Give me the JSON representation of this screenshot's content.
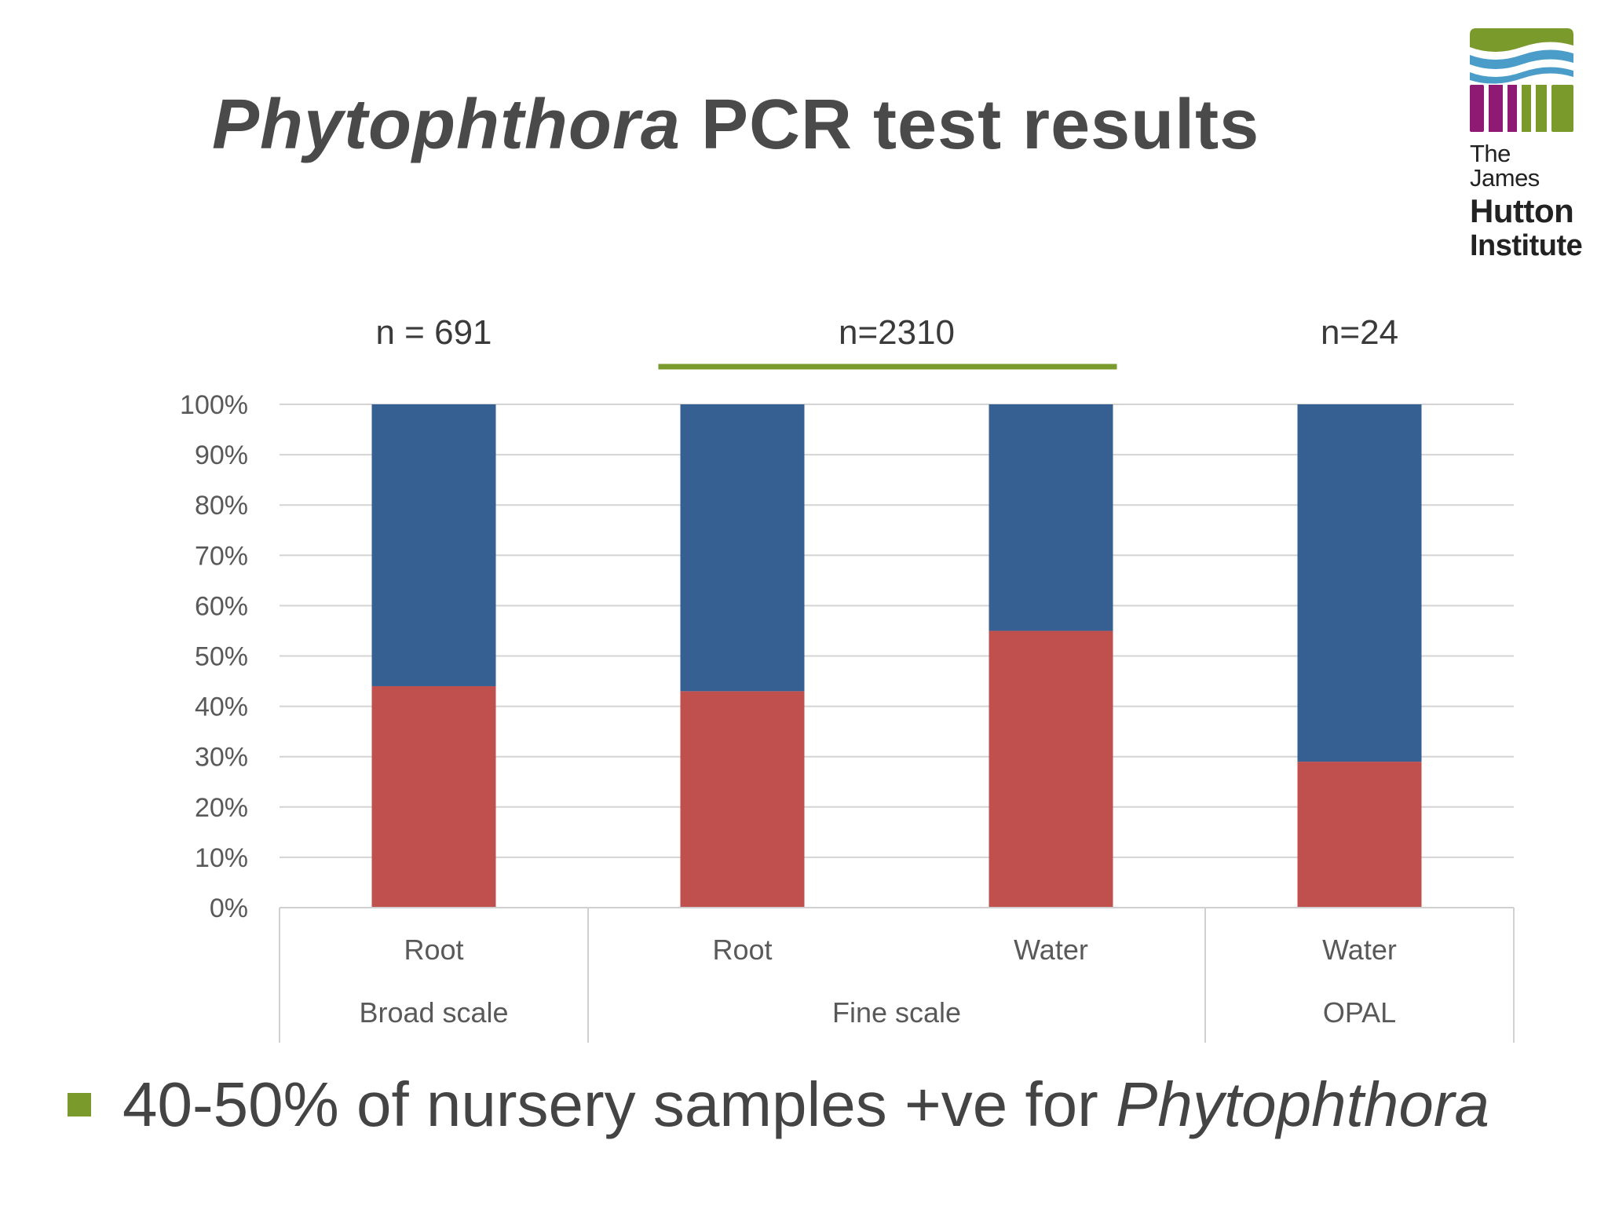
{
  "title": {
    "italic_part": "Phytophthora",
    "rest": " PCR test results"
  },
  "logo": {
    "line1": "The James",
    "line2": "Hutton",
    "line3": "Institute"
  },
  "bullet": {
    "text": "40-50% of nursery samples +ve for ",
    "italic_part": "Phytophthora"
  },
  "colors": {
    "positive": "#c0504d",
    "negative": "#376092",
    "accent": "#7a9a2b",
    "logo_purple": "#8e1a73",
    "logo_blue": "#4a9cc9"
  },
  "chart_data": {
    "type": "bar",
    "stacked": true,
    "percent": true,
    "categories": [
      "Root",
      "Root",
      "Water",
      "Water"
    ],
    "groups": [
      {
        "label": "Broad scale",
        "n": "n = 691",
        "categories": [
          0
        ]
      },
      {
        "label": "Fine scale",
        "n": "n=2310",
        "categories": [
          1,
          2
        ]
      },
      {
        "label": "OPAL",
        "n": "n=24",
        "categories": [
          3
        ]
      }
    ],
    "series": [
      {
        "values": [
          44,
          43,
          55,
          29
        ],
        "color": "#c0504d"
      },
      {
        "values": [
          56,
          57,
          45,
          71
        ],
        "color": "#376092"
      }
    ],
    "ylim": [
      0,
      100
    ],
    "yticks": [
      "0%",
      "10%",
      "20%",
      "30%",
      "40%",
      "50%",
      "60%",
      "70%",
      "80%",
      "90%",
      "100%"
    ],
    "grid": true
  }
}
